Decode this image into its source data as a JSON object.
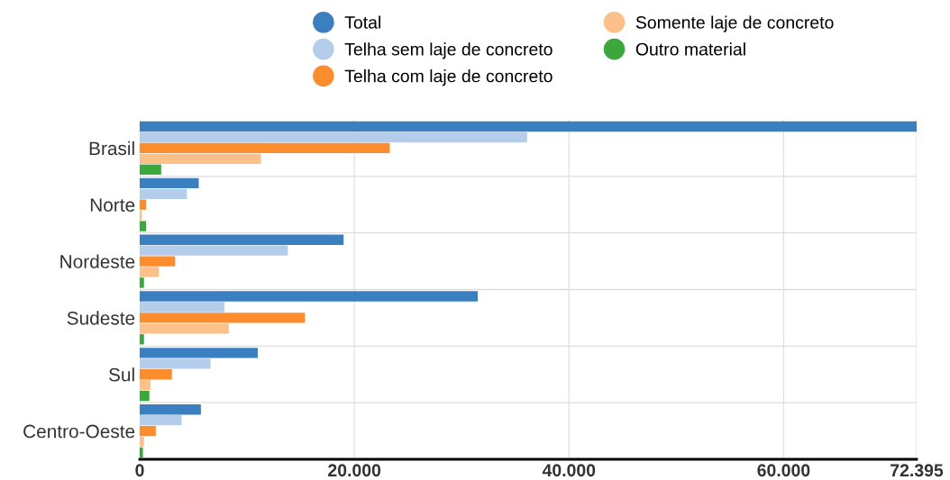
{
  "chart_data": {
    "type": "bar",
    "orientation": "horizontal",
    "categories": [
      "Brasil",
      "Norte",
      "Nordeste",
      "Sudeste",
      "Sul",
      "Centro-Oeste"
    ],
    "series": [
      {
        "name": "Total",
        "color": "#3a7fbf",
        "values": [
          72395,
          5500,
          19000,
          31500,
          11000,
          5700
        ]
      },
      {
        "name": "Telha sem laje de concreto",
        "color": "#b3cdeb",
        "values": [
          36100,
          4400,
          13800,
          7900,
          6600,
          3900
        ]
      },
      {
        "name": "Telha com laje de concreto",
        "color": "#fd8d2c",
        "values": [
          23300,
          600,
          3300,
          15400,
          3000,
          1500
        ]
      },
      {
        "name": "Somente laje de concreto",
        "color": "#fdc088",
        "values": [
          11300,
          200,
          1800,
          8300,
          1000,
          400
        ]
      },
      {
        "name": "Outro material",
        "color": "#3aa83a",
        "values": [
          2000,
          600,
          400,
          400,
          900,
          300
        ]
      }
    ],
    "xlim": [
      0,
      72395
    ],
    "xticks": [
      0,
      {
        "value": 20000,
        "label": "20.000"
      },
      {
        "value": 40000,
        "label": "40.000"
      },
      {
        "value": 60000,
        "label": "60.000"
      },
      {
        "value": 72395,
        "label": "72.395"
      }
    ],
    "grid": true,
    "legend": "top"
  }
}
